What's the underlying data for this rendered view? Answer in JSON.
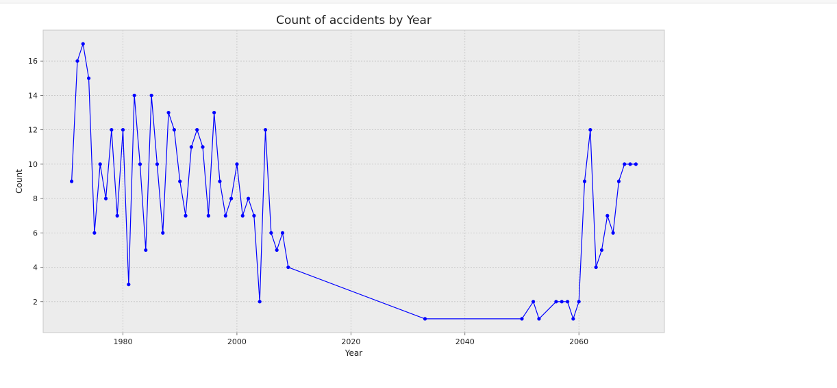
{
  "chart_data": {
    "type": "line",
    "title": "Count of accidents by Year",
    "xlabel": "Year",
    "ylabel": "Count",
    "xlim": [
      1966,
      2075
    ],
    "ylim": [
      0.2,
      17.8
    ],
    "xticks": [
      1980,
      2000,
      2020,
      2040,
      2060
    ],
    "yticks": [
      2,
      4,
      6,
      8,
      10,
      12,
      14,
      16
    ],
    "grid": true,
    "legend": "none",
    "colors": {
      "line": "#0000ff",
      "plot_background": "#ececec",
      "grid": "#c4c4c4",
      "axes_edge": "#c8c8c8"
    },
    "series": [
      {
        "x": [
          1971,
          1972,
          1973,
          1974,
          1975,
          1976,
          1977,
          1978,
          1979,
          1980,
          1981,
          1982,
          1983,
          1984,
          1985,
          1986,
          1987,
          1988,
          1989,
          1990,
          1991,
          1992,
          1993,
          1994,
          1995,
          1996,
          1997,
          1998,
          1999,
          2000,
          2001,
          2002,
          2003,
          2004,
          2005,
          2006,
          2007,
          2008,
          2009,
          2033,
          2050,
          2052,
          2053,
          2056,
          2057,
          2058,
          2059,
          2060,
          2061,
          2062,
          2063,
          2064,
          2065,
          2066,
          2067,
          2068,
          2069,
          2070
        ],
        "values": [
          9,
          16,
          17,
          15,
          6,
          10,
          8,
          12,
          7,
          12,
          3,
          14,
          10,
          5,
          14,
          10,
          6,
          13,
          12,
          9,
          7,
          11,
          12,
          11,
          7,
          13,
          9,
          7,
          8,
          10,
          7,
          8,
          7,
          2,
          12,
          6,
          5,
          6,
          4,
          1,
          1,
          2,
          1,
          2,
          2,
          2,
          1,
          2,
          9,
          12,
          4,
          5,
          7,
          6,
          9,
          10,
          10,
          10
        ]
      }
    ]
  }
}
